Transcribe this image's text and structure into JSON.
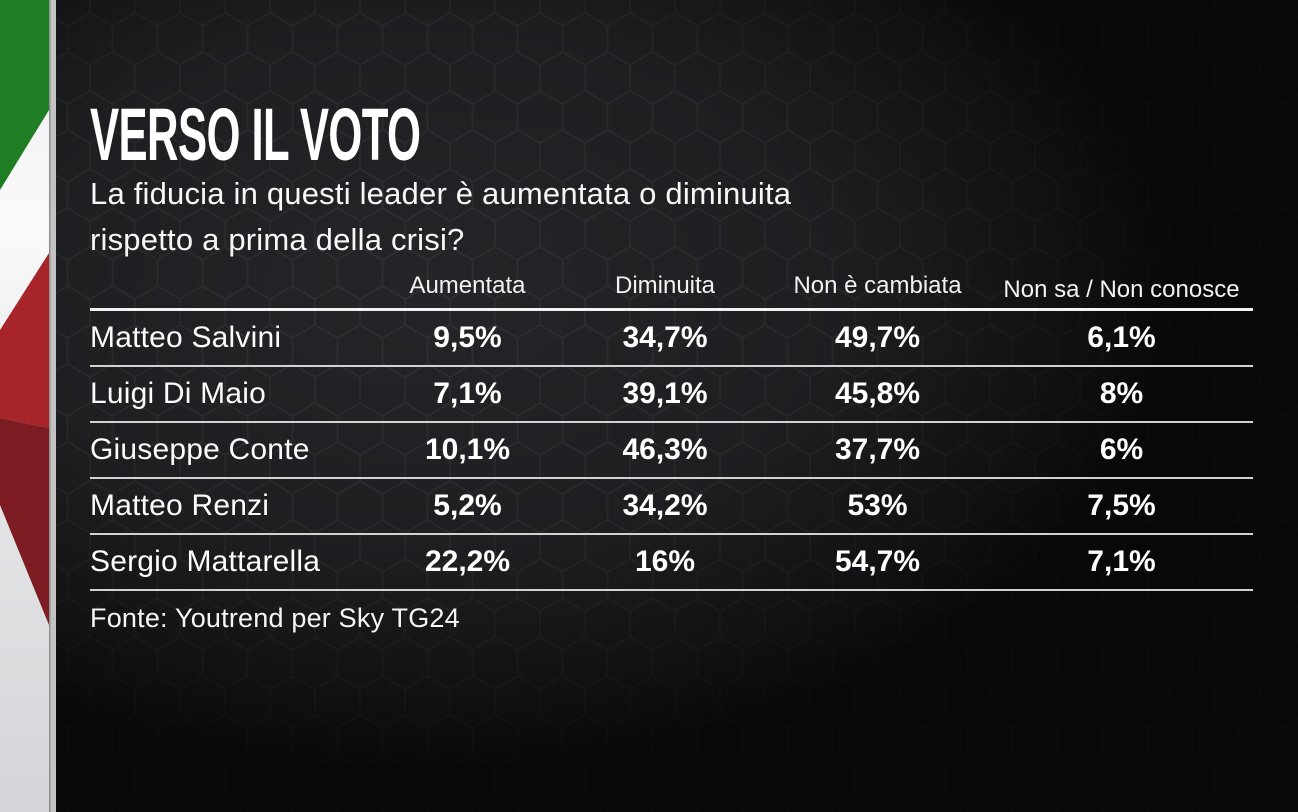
{
  "header": {
    "title": "VERSO IL VOTO",
    "subtitle_line1": "La fiducia in questi leader è aumentata o diminuita",
    "subtitle_line2": "rispetto a prima della crisi?"
  },
  "table": {
    "columns": [
      "Aumentata",
      "Diminuita",
      "Non è cambiata",
      "Non sa / Non conosce"
    ],
    "rows": [
      {
        "name": "Matteo Salvini",
        "values": [
          "9,5%",
          "34,7%",
          "49,7%",
          "6,1%"
        ]
      },
      {
        "name": "Luigi Di Maio",
        "values": [
          "7,1%",
          "39,1%",
          "45,8%",
          "8%"
        ]
      },
      {
        "name": "Giuseppe Conte",
        "values": [
          "10,1%",
          "46,3%",
          "37,7%",
          "6%"
        ]
      },
      {
        "name": "Matteo Renzi",
        "values": [
          "5,2%",
          "34,2%",
          "53%",
          "7,5%"
        ]
      },
      {
        "name": "Sergio Mattarella",
        "values": [
          "22,2%",
          "16%",
          "54,7%",
          "7,1%"
        ]
      }
    ]
  },
  "footer": {
    "source": "Fonte: Youtrend per Sky TG24"
  },
  "colors": {
    "background": "#232528",
    "hex_outline": "#303134",
    "flag_green": "#1f7d24",
    "flag_white": "#f5f5f6",
    "flag_red": "#a8242b",
    "flag_dark_red": "#7d1d23",
    "flag_gray_band": "#c2c3c2",
    "rule_line": "#f2f2f2",
    "text": "#ffffff"
  },
  "chart_data": {
    "type": "table",
    "title": "VERSO IL VOTO",
    "subtitle": "La fiducia in questi leader è aumentata o diminuita rispetto a prima della crisi?",
    "columns": [
      "Aumentata",
      "Diminuita",
      "Non è cambiata",
      "Non sa / Non conosce"
    ],
    "row_labels": [
      "Matteo Salvini",
      "Luigi Di Maio",
      "Giuseppe Conte",
      "Matteo Renzi",
      "Sergio Mattarella"
    ],
    "values_pct": [
      [
        9.5,
        34.7,
        49.7,
        6.1
      ],
      [
        7.1,
        39.1,
        45.8,
        8.0
      ],
      [
        10.1,
        46.3,
        37.7,
        6.0
      ],
      [
        5.2,
        34.2,
        53.0,
        7.5
      ],
      [
        22.2,
        16.0,
        54.7,
        7.1
      ]
    ],
    "source": "Fonte: Youtrend per Sky TG24"
  }
}
